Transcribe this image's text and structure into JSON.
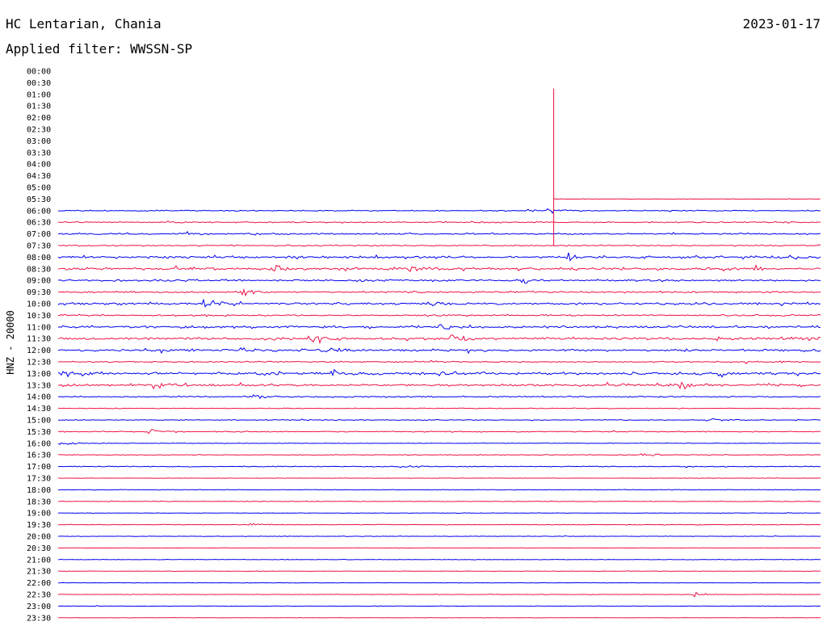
{
  "header": {
    "station": "HC Lentarian, Chania",
    "date": "2023-01-17",
    "filter": "Applied filter: WWSSN-SP"
  },
  "colors": {
    "even_trace": "#0000ee",
    "odd_trace": "#ee1144",
    "background": "#ffffff",
    "text": "#000000"
  },
  "chart_data": {
    "type": "line",
    "title": "HC Lentarian, Chania",
    "ylabel": "HNZ - 20000",
    "rows": [
      "00:00",
      "00:30",
      "01:00",
      "01:30",
      "02:00",
      "02:30",
      "03:00",
      "03:30",
      "04:00",
      "04:30",
      "05:00",
      "05:30",
      "06:00",
      "06:30",
      "07:00",
      "07:30",
      "08:00",
      "08:30",
      "09:00",
      "09:30",
      "10:00",
      "10:30",
      "11:00",
      "11:30",
      "12:00",
      "12:30",
      "13:00",
      "13:30",
      "14:00",
      "14:30",
      "15:00",
      "15:30",
      "16:00",
      "16:30",
      "17:00",
      "17:30",
      "18:00",
      "18:30",
      "19:00",
      "19:30",
      "20:00",
      "20:30",
      "21:00",
      "21:30",
      "22:00",
      "22:30",
      "23:00",
      "23:30"
    ],
    "row_minutes": 30,
    "trace_start": {
      "row": "05:30",
      "minute": 19.5
    },
    "spike": {
      "row": "05:30",
      "minute": 19.5,
      "amplitude_rows": 9.5
    },
    "activity": [
      0,
      0,
      0,
      0,
      0,
      0,
      0,
      0,
      0,
      0,
      0,
      0.6,
      1.2,
      1.5,
      1.8,
      1.3,
      2.6,
      3.0,
      2.2,
      2.0,
      2.4,
      1.8,
      2.6,
      2.9,
      2.8,
      1.5,
      3.0,
      2.7,
      1.5,
      0.9,
      1.0,
      1.1,
      0.7,
      0.9,
      1.1,
      0.5,
      0.7,
      0.7,
      0.5,
      0.7,
      0.6,
      0.4,
      0.5,
      0.5,
      0.4,
      0.6,
      0.5,
      0.4
    ],
    "events": [
      {
        "row": "06:00",
        "minute": 19.3,
        "amp": 5
      },
      {
        "row": "06:00",
        "minute": 18.5,
        "amp": 3
      },
      {
        "row": "07:00",
        "minute": 5.0,
        "amp": 4
      },
      {
        "row": "08:00",
        "minute": 20.0,
        "amp": 6
      },
      {
        "row": "08:00",
        "minute": 28.8,
        "amp": 5
      },
      {
        "row": "08:30",
        "minute": 8.5,
        "amp": 8
      },
      {
        "row": "08:30",
        "minute": 13.8,
        "amp": 6
      },
      {
        "row": "09:00",
        "minute": 18.3,
        "amp": 6
      },
      {
        "row": "09:30",
        "minute": 7.3,
        "amp": 5
      },
      {
        "row": "10:00",
        "minute": 5.7,
        "amp": 7
      },
      {
        "row": "10:00",
        "minute": 14.8,
        "amp": 6
      },
      {
        "row": "11:00",
        "minute": 15.0,
        "amp": 7
      },
      {
        "row": "11:30",
        "minute": 10.0,
        "amp": 8
      },
      {
        "row": "11:30",
        "minute": 15.5,
        "amp": 6
      },
      {
        "row": "12:00",
        "minute": 4.1,
        "amp": 5
      },
      {
        "row": "12:00",
        "minute": 10.5,
        "amp": 7
      },
      {
        "row": "13:00",
        "minute": 0.2,
        "amp": 8
      },
      {
        "row": "13:00",
        "minute": 10.8,
        "amp": 7
      },
      {
        "row": "13:00",
        "minute": 15.0,
        "amp": 6
      },
      {
        "row": "13:00",
        "minute": 26.0,
        "amp": 6
      },
      {
        "row": "13:30",
        "minute": 4.0,
        "amp": 7
      },
      {
        "row": "13:30",
        "minute": 24.5,
        "amp": 6
      },
      {
        "row": "14:00",
        "minute": 7.5,
        "amp": 6
      },
      {
        "row": "15:00",
        "minute": 25.5,
        "amp": 4
      },
      {
        "row": "15:30",
        "minute": 3.5,
        "amp": 7
      },
      {
        "row": "16:00",
        "minute": 0.1,
        "amp": 5
      },
      {
        "row": "16:30",
        "minute": 23.0,
        "amp": 4
      },
      {
        "row": "17:00",
        "minute": 13.5,
        "amp": 5
      },
      {
        "row": "19:30",
        "minute": 7.5,
        "amp": 4
      },
      {
        "row": "22:30",
        "minute": 25.0,
        "amp": 4
      }
    ]
  }
}
